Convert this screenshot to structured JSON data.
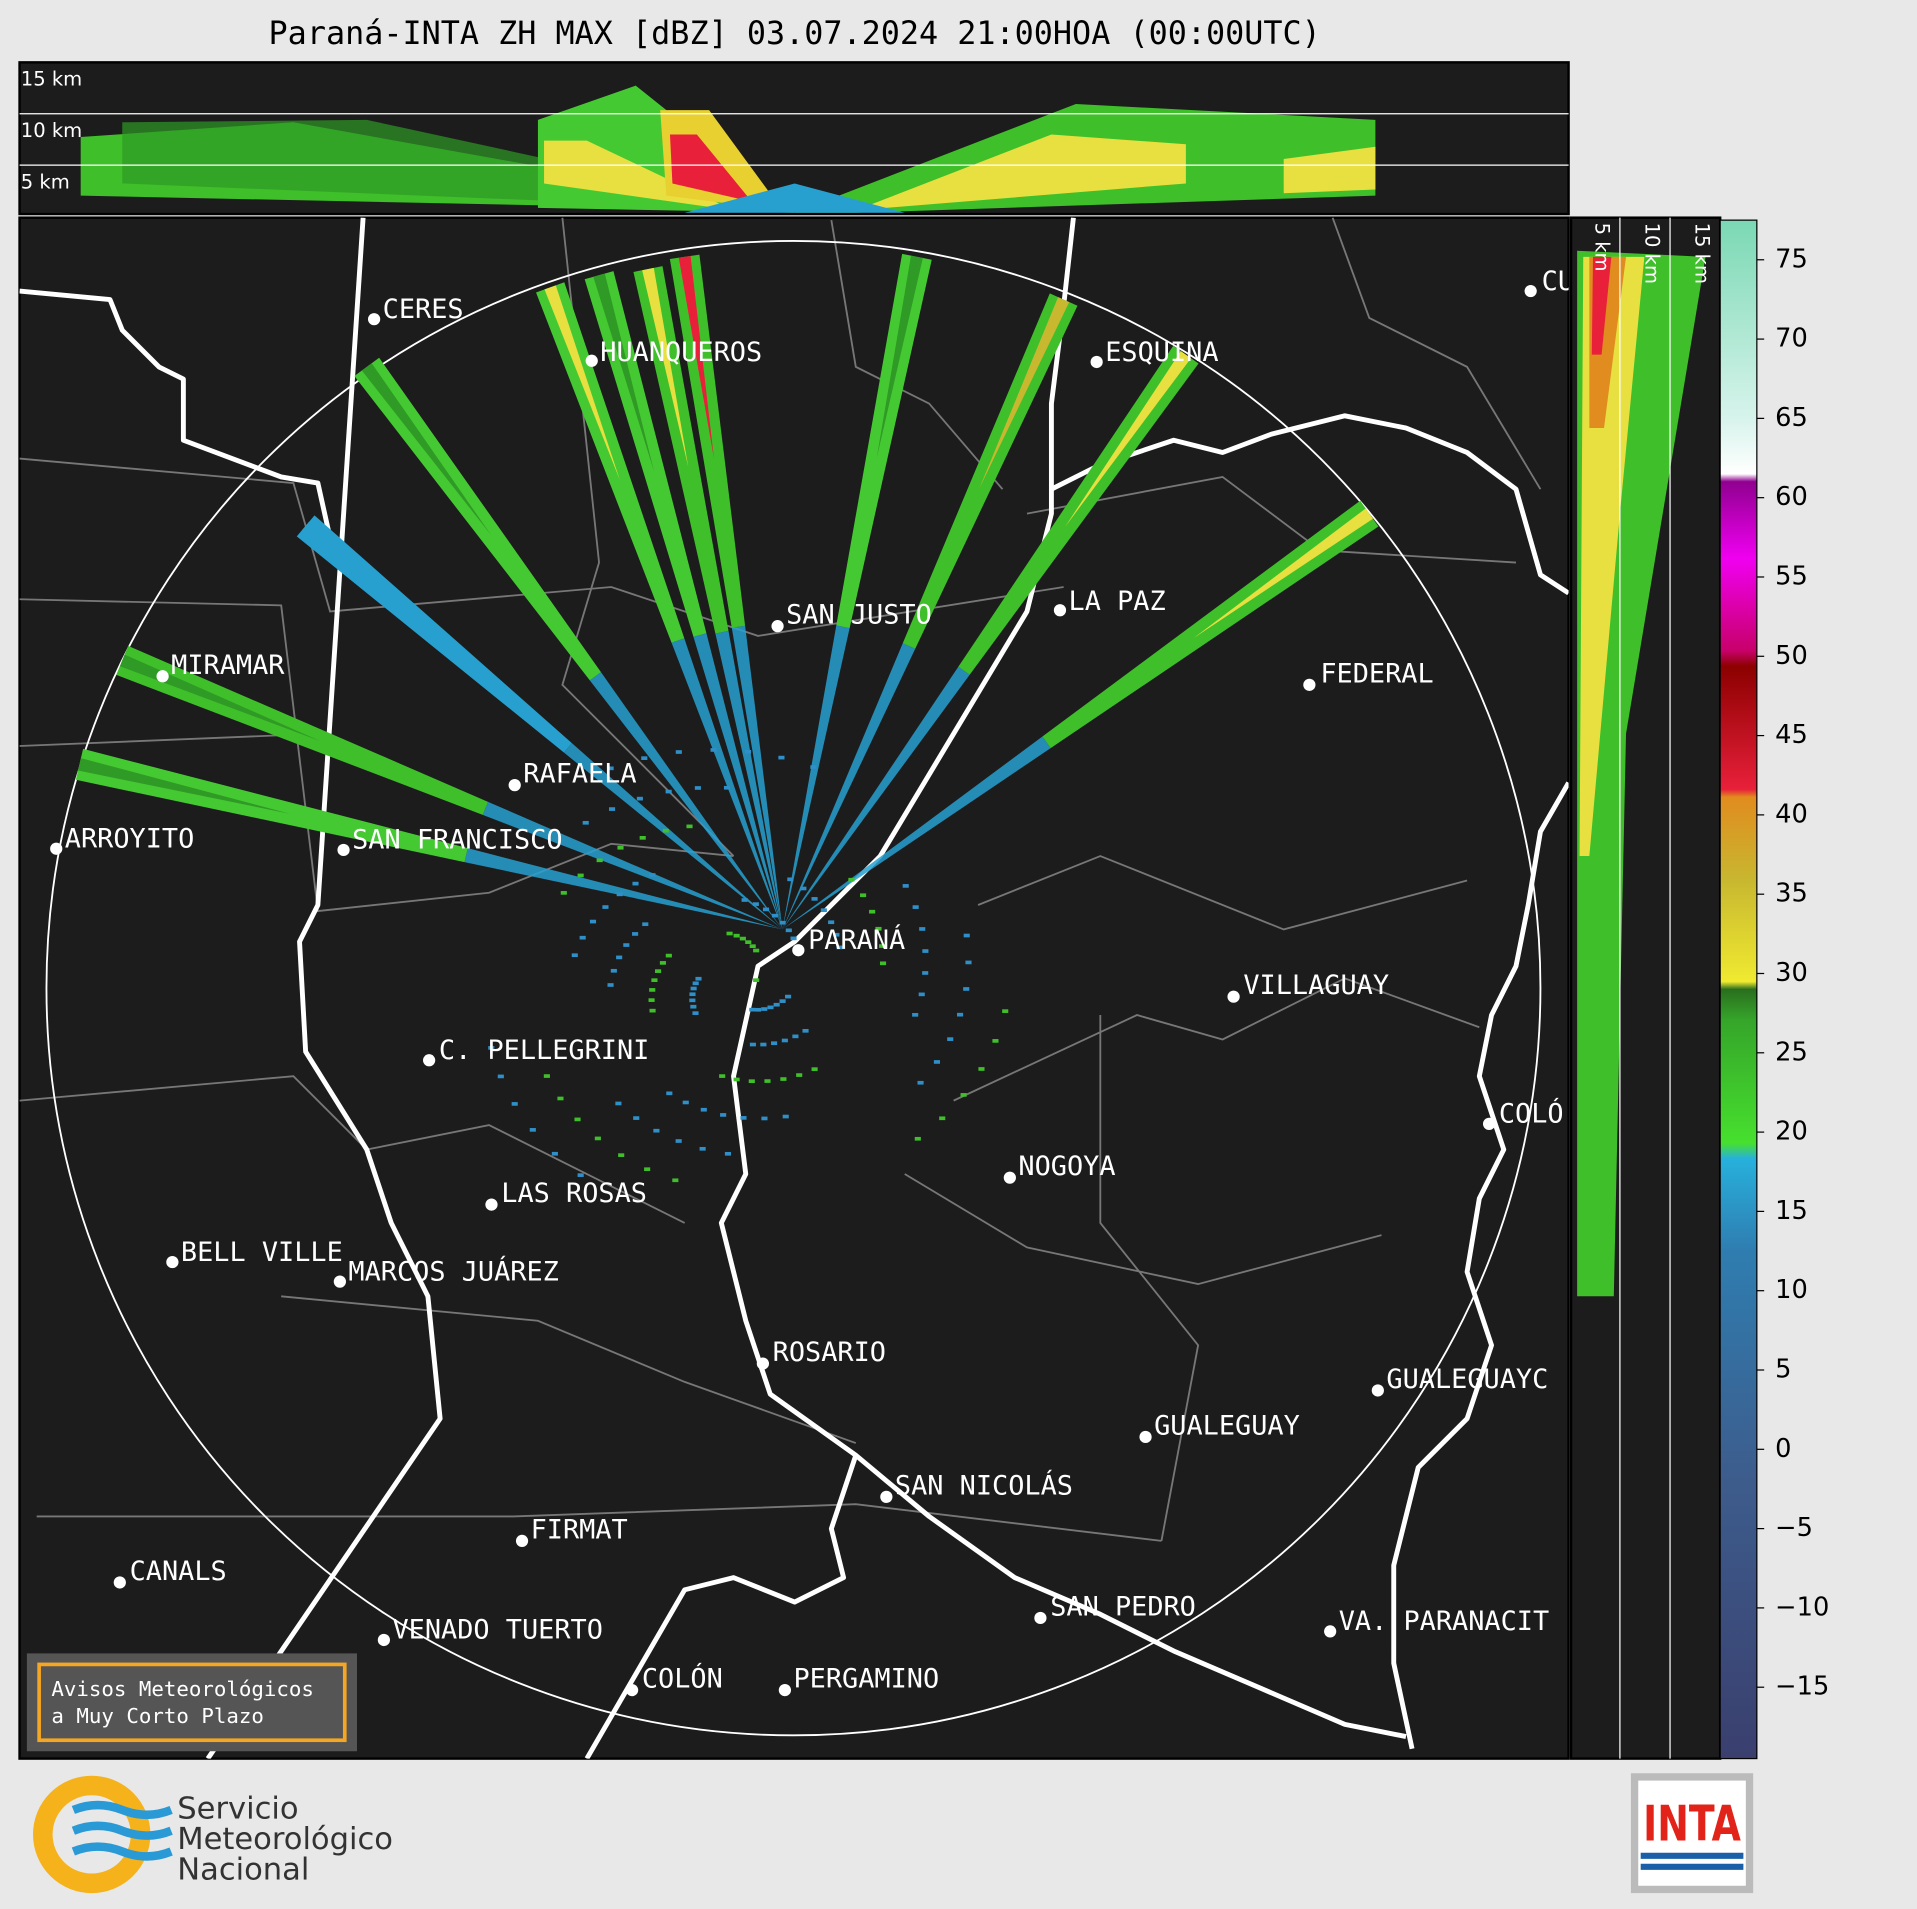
{
  "title": "Paraná-INTA ZH MAX [dBZ] 03.07.2024 21:00HOA (00:00UTC)",
  "height_labels": [
    "15 km",
    "10 km",
    "5 km"
  ],
  "cities": [
    "CERES",
    "HUANQUEROS",
    "ESQUINA",
    "CU",
    "SAN JUSTO",
    "LA PAZ",
    "MIRAMAR",
    "FEDERAL",
    "RAFAELA",
    "ARROYITO",
    "SAN FRANCISCO",
    "PARANÁ",
    "VILLAGUAY",
    "C. PELLEGRINI",
    "COLÓ",
    "NOGOYA",
    "LAS ROSAS",
    "BELL VILLE",
    "MARCOS JUÁREZ",
    "ROSARIO",
    "GUALEGUAYC",
    "GUALEGUAY",
    "SAN NICOLÁS",
    "FIRMAT",
    "CANALS",
    "SAN PEDRO",
    "VA. PARANACIT",
    "VENADO TUERTO",
    "COLÓN",
    "PERGAMINO"
  ],
  "colorbar": {
    "lim": [
      -19.5,
      77.5
    ],
    "ticks": [
      {
        "value": -15,
        "label": "−15"
      },
      {
        "value": -10,
        "label": "−10"
      },
      {
        "value": -5,
        "label": "−5"
      },
      0,
      5,
      10,
      15,
      20,
      25,
      30,
      35,
      40,
      45,
      50,
      55,
      60,
      65,
      70,
      75
    ]
  },
  "notice": [
    "Avisos Meteorológicos",
    "a Muy Corto Plazo"
  ],
  "logo_smn": [
    "Servicio",
    "Meteorológico",
    "Nacional"
  ],
  "logo_inta": "INTA"
}
